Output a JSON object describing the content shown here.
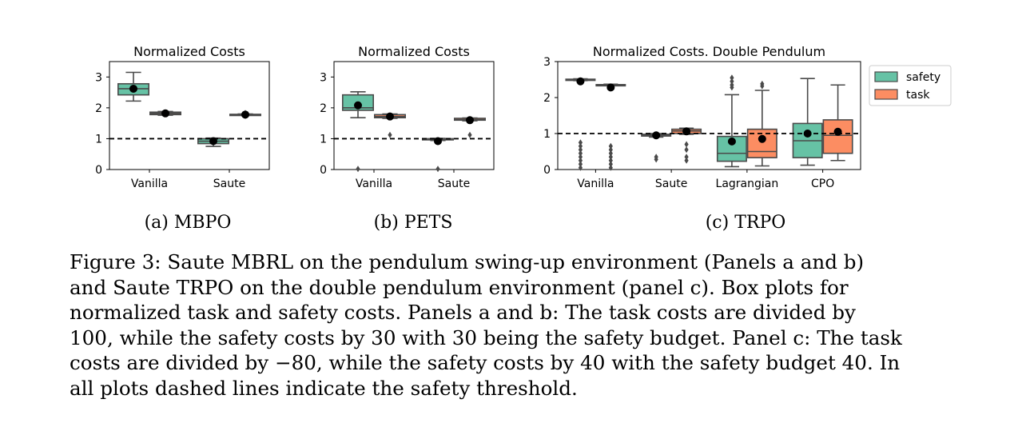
{
  "colors": {
    "safety": "#66c2a5",
    "task": "#fc8d62",
    "line": "#4a4a4a",
    "mean": "#000000"
  },
  "legend": {
    "entries": [
      "safety",
      "task"
    ],
    "placement": "right of panel c"
  },
  "subcaptions": [
    "(a) MBPO",
    "(b) PETS",
    "(c) TRPO"
  ],
  "caption": {
    "lines": [
      "Figure 3: Saute MBRL on the pendulum swing-up environment (Panels a and b)",
      "and Saute TRPO on the double pendulum environment (panel c). Box plots for",
      "normalized task and safety costs. Panels a and b: The task costs are divided by",
      "100, while the safety costs by 30 with 30 being the safety budget. Panel c: The task",
      "costs are divided by −80, while the safety costs by 40 with the safety budget 40. In",
      "all plots dashed lines indicate the safety threshold."
    ]
  },
  "chart_data": [
    {
      "type": "box",
      "title": "Normalized Costs",
      "categories": [
        "Vanilla",
        "Saute"
      ],
      "ylim": [
        0,
        3.5
      ],
      "yticks": [
        0,
        1,
        2,
        3
      ],
      "threshold": 1,
      "series": [
        {
          "name": "safety",
          "boxes": [
            {
              "whislo": 2.22,
              "q1": 2.42,
              "med": 2.62,
              "q3": 2.78,
              "whishi": 3.15,
              "mean": 2.62,
              "fliers": []
            },
            {
              "whislo": 0.75,
              "q1": 0.84,
              "med": 0.92,
              "q3": 1.0,
              "whishi": 1.02,
              "mean": 0.92,
              "fliers": []
            }
          ]
        },
        {
          "name": "task",
          "boxes": [
            {
              "whislo": 1.76,
              "q1": 1.78,
              "med": 1.82,
              "q3": 1.86,
              "whishi": 1.88,
              "mean": 1.82,
              "fliers": []
            },
            {
              "whislo": 1.76,
              "q1": 1.77,
              "med": 1.78,
              "q3": 1.79,
              "whishi": 1.8,
              "mean": 1.78,
              "fliers": [
                1.83,
                1.74
              ]
            }
          ]
        }
      ]
    },
    {
      "type": "box",
      "title": "Normalized Costs",
      "categories": [
        "Vanilla",
        "Saute"
      ],
      "ylim": [
        0,
        3.5
      ],
      "yticks": [
        0,
        1,
        2,
        3
      ],
      "threshold": 1,
      "series": [
        {
          "name": "safety",
          "boxes": [
            {
              "whislo": 1.68,
              "q1": 1.92,
              "med": 2.0,
              "q3": 2.42,
              "whishi": 2.52,
              "mean": 2.08,
              "fliers": [
                0.02
              ]
            },
            {
              "whislo": 0.94,
              "q1": 0.97,
              "med": 0.98,
              "q3": 1.0,
              "whishi": 1.01,
              "mean": 0.92,
              "fliers": [
                0.02
              ]
            }
          ]
        },
        {
          "name": "task",
          "boxes": [
            {
              "whislo": 1.66,
              "q1": 1.68,
              "med": 1.72,
              "q3": 1.78,
              "whishi": 1.8,
              "mean": 1.72,
              "fliers": [
                1.12
              ]
            },
            {
              "whislo": 1.58,
              "q1": 1.6,
              "med": 1.62,
              "q3": 1.66,
              "whishi": 1.67,
              "mean": 1.6,
              "fliers": [
                1.12
              ]
            }
          ]
        }
      ]
    },
    {
      "type": "box",
      "title": "Normalized Costs. Double Pendulum",
      "categories": [
        "Vanilla",
        "Saute",
        "Lagrangian",
        "CPO"
      ],
      "ylim": [
        0,
        3
      ],
      "yticks": [
        0,
        1,
        2,
        3
      ],
      "threshold": 1,
      "series": [
        {
          "name": "safety",
          "boxes": [
            {
              "whislo": 2.47,
              "q1": 2.48,
              "med": 2.5,
              "q3": 2.51,
              "whishi": 2.52,
              "mean": 2.45,
              "fliers": [
                0.75,
                0.65,
                0.55,
                0.45,
                0.35,
                0.25,
                0.15,
                0.05
              ]
            },
            {
              "whislo": 0.9,
              "q1": 0.93,
              "med": 0.96,
              "q3": 0.98,
              "whishi": 1.0,
              "mean": 0.95,
              "fliers": [
                0.35,
                0.28
              ]
            },
            {
              "whislo": 0.08,
              "q1": 0.23,
              "med": 0.45,
              "q3": 0.92,
              "whishi": 2.08,
              "mean": 0.78,
              "fliers": [
                2.55,
                2.45,
                2.35,
                2.28
              ]
            },
            {
              "whislo": 0.12,
              "q1": 0.33,
              "med": 0.8,
              "q3": 1.28,
              "whishi": 2.53,
              "mean": 1.0,
              "fliers": []
            }
          ]
        },
        {
          "name": "task",
          "boxes": [
            {
              "whislo": 2.33,
              "q1": 2.33,
              "med": 2.35,
              "q3": 2.36,
              "whishi": 2.37,
              "mean": 2.28,
              "fliers": [
                0.65,
                0.55,
                0.45,
                0.35,
                0.25,
                0.15,
                0.05
              ]
            },
            {
              "whislo": 0.98,
              "q1": 1.0,
              "med": 1.07,
              "q3": 1.12,
              "whishi": 1.15,
              "mean": 1.06,
              "fliers": [
                0.7,
                0.55,
                0.35,
                0.25
              ]
            },
            {
              "whislo": 0.1,
              "q1": 0.33,
              "med": 0.5,
              "q3": 1.12,
              "whishi": 2.2,
              "mean": 0.85,
              "fliers": [
                2.38,
                2.32
              ]
            },
            {
              "whislo": 0.25,
              "q1": 0.45,
              "med": 0.95,
              "q3": 1.38,
              "whishi": 2.35,
              "mean": 1.05,
              "fliers": []
            }
          ]
        }
      ]
    }
  ]
}
